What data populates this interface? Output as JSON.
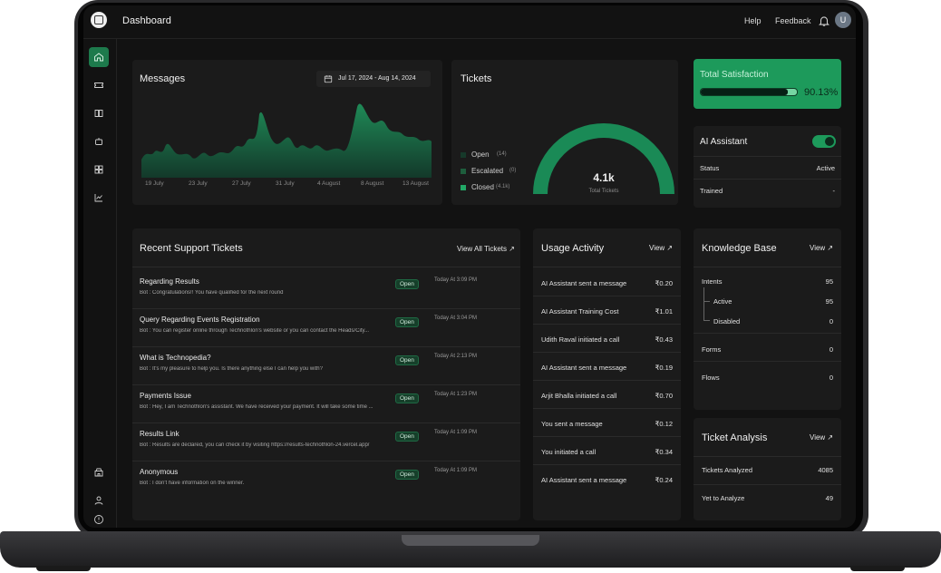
{
  "app": {
    "page_title": "Dashboard",
    "help_label": "Help",
    "feedback_label": "Feedback",
    "avatar_initial": "U"
  },
  "messages": {
    "title": "Messages",
    "date_range": "Jul 17, 2024 - Aug 14, 2024",
    "x_labels": [
      "19 July",
      "23 July",
      "27 July",
      "31 July",
      "4 August",
      "8 August",
      "13 August"
    ]
  },
  "tickets": {
    "title": "Tickets",
    "legend": [
      {
        "label": "Open",
        "count": "(14)"
      },
      {
        "label": "Escalated",
        "count": "(0)"
      },
      {
        "label": "Closed",
        "count": "(4.1k)"
      }
    ],
    "total_value": "4.1k",
    "total_label": "Total Tickets"
  },
  "satisfaction": {
    "label": "Total Satisfaction",
    "percent_text": "90.13%",
    "percent": 90.13
  },
  "ai_assistant": {
    "title": "AI Assistant",
    "status_label": "Status",
    "status_value": "Active",
    "trained_label": "Trained",
    "trained_value": "-"
  },
  "recent_tickets": {
    "title": "Recent Support Tickets",
    "view_all_label": "View All Tickets ↗",
    "items": [
      {
        "title": "Regarding Results",
        "preview": "Bot : Congratulations!! You have qualified for the next round",
        "status": "Open",
        "time": "Today At 3:09 PM"
      },
      {
        "title": "Query Regarding Events Registration",
        "preview": "Bot : You can register online through Technothlon's website or you can contact the Heads/City...",
        "status": "Open",
        "time": "Today At 3:04 PM"
      },
      {
        "title": "What is Technopedia?",
        "preview": "Bot : It's my pleasure to help you. Is there anything else I can help you with?",
        "status": "Open",
        "time": "Today At 2:13 PM"
      },
      {
        "title": "Payments Issue",
        "preview": "Bot : Hey, I am Technothlon's assistant. We have received your payment. It will take some time ...",
        "status": "Open",
        "time": "Today At 1:23 PM"
      },
      {
        "title": "Results Link",
        "preview": "Bot : Results are declared, you can check it by visiting https://results-technothlon-24.vercel.app/",
        "status": "Open",
        "time": "Today At 1:09 PM"
      },
      {
        "title": "Anonymous",
        "preview": "Bot : I don't have information on the winner.",
        "status": "Open",
        "time": "Today At 1:09 PM"
      }
    ]
  },
  "usage": {
    "title": "Usage Activity",
    "view_label": "View ↗",
    "items": [
      {
        "text": "AI Assistant sent a message",
        "amount": "₹0.20"
      },
      {
        "text": "AI Assistant Training Cost",
        "amount": "₹1.01"
      },
      {
        "text": "Udith Raval initiated a call",
        "amount": "₹0.43"
      },
      {
        "text": "AI Assistant sent a message",
        "amount": "₹0.19"
      },
      {
        "text": "Arjit Bhalla initiated a call",
        "amount": "₹0.70"
      },
      {
        "text": "You sent a message",
        "amount": "₹0.12"
      },
      {
        "text": "You initiated a call",
        "amount": "₹0.34"
      },
      {
        "text": "AI Assistant sent a message",
        "amount": "₹0.24"
      }
    ]
  },
  "knowledge_base": {
    "title": "Knowledge Base",
    "view_label": "View ↗",
    "intents_label": "Intents",
    "intents_value": "95",
    "active_label": "Active",
    "active_value": "95",
    "disabled_label": "Disabled",
    "disabled_value": "0",
    "forms_label": "Forms",
    "forms_value": "0",
    "flows_label": "Flows",
    "flows_value": "0"
  },
  "ticket_analysis": {
    "title": "Ticket Analysis",
    "view_label": "View ↗",
    "analyzed_label": "Tickets Analyzed",
    "analyzed_value": "4085",
    "yet_label": "Yet to Analyze",
    "yet_value": "49"
  },
  "colors": {
    "accent": "#1a8a56",
    "accent_bright": "#22c06f",
    "card": "#1b1b1b"
  },
  "icons": [
    "home-icon",
    "ticket-icon",
    "book-icon",
    "bot-icon",
    "apps-icon",
    "chart-icon",
    "building-icon",
    "user-icon",
    "info-icon",
    "bell-icon",
    "calendar-icon"
  ]
}
